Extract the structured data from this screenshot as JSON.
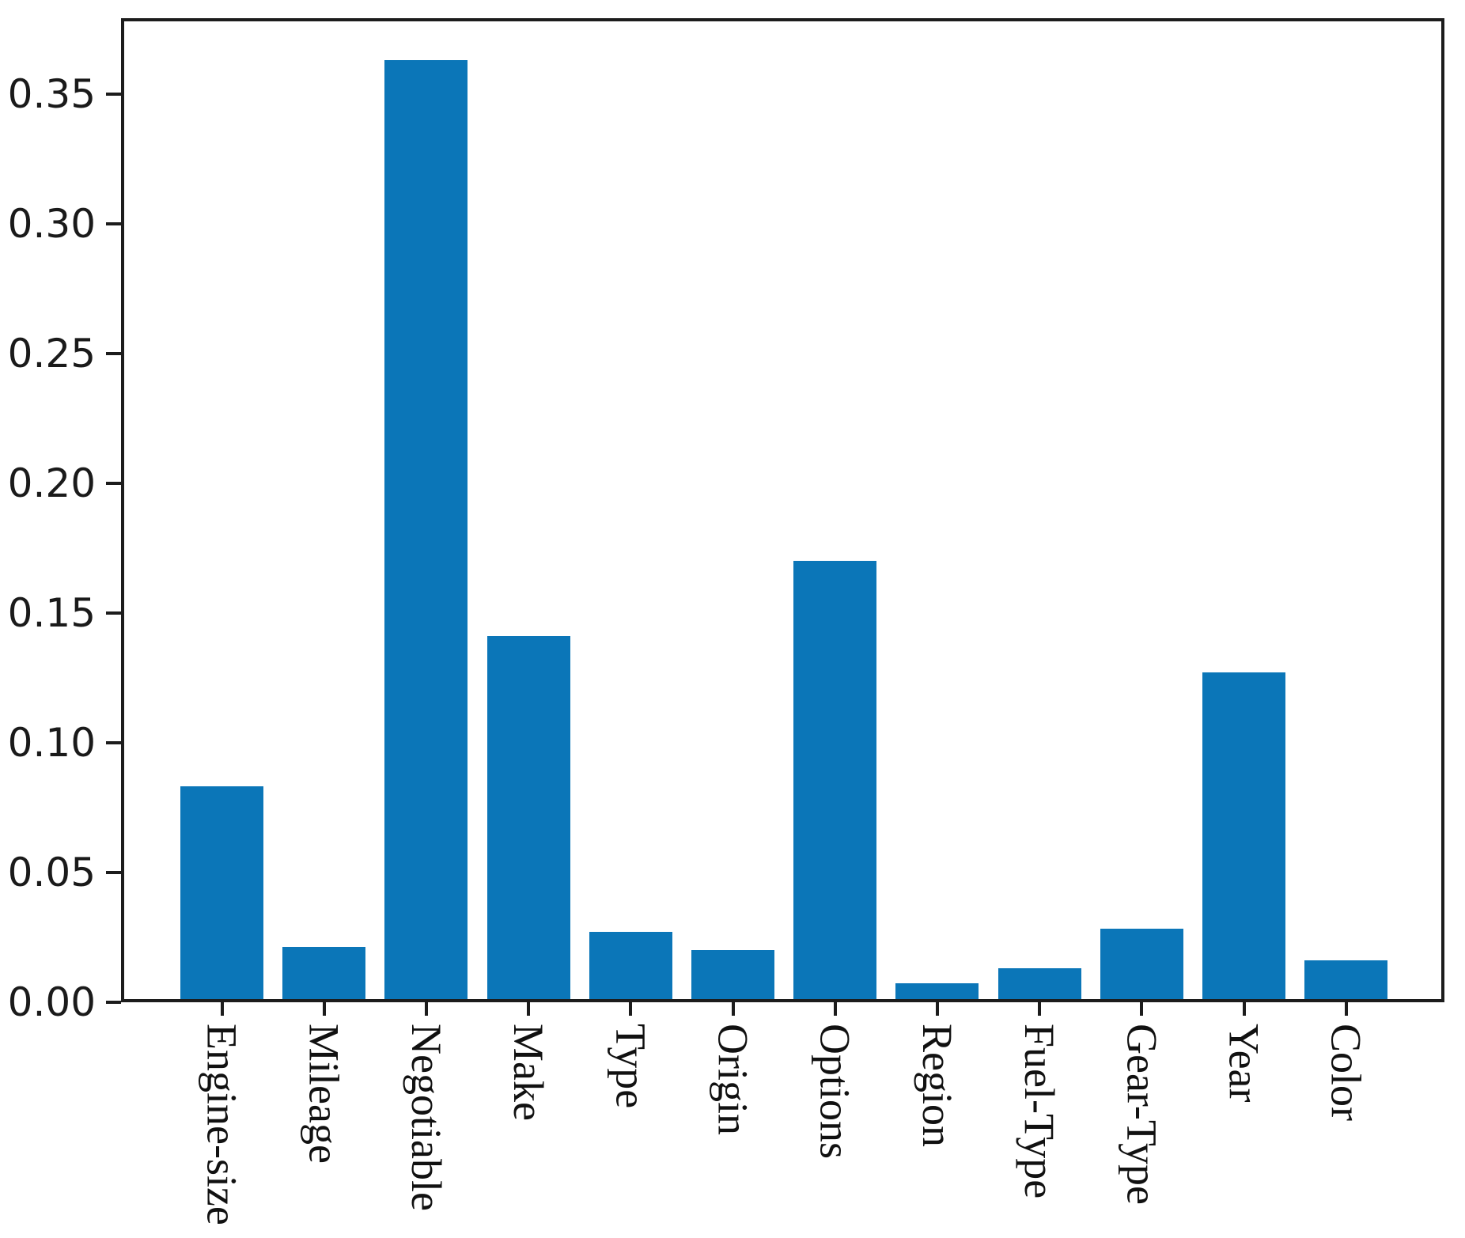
{
  "figure": {
    "title": "",
    "background": "#ffffff",
    "frame_color": "#1c1c1c",
    "text_color": "#1a1a1a"
  },
  "chart_data": {
    "type": "bar",
    "title": "",
    "xlabel": "",
    "ylabel": "",
    "categories": [
      "Engine-size",
      "Mileage",
      "Negotiable",
      "Make",
      "Type",
      "Origin",
      "Options",
      "Region",
      "Fuel-Type",
      "Gear-Type",
      "Year",
      "Color"
    ],
    "values": [
      0.082,
      0.02,
      0.362,
      0.14,
      0.026,
      0.019,
      0.169,
      0.006,
      0.012,
      0.027,
      0.126,
      0.015
    ],
    "bar_color": "#0b76b8",
    "ylim": [
      0,
      0.3793
    ],
    "yticks": [
      {
        "value": 0.0,
        "label": "0.00"
      },
      {
        "value": 0.05,
        "label": "0.05"
      },
      {
        "value": 0.1,
        "label": "0.10"
      },
      {
        "value": 0.15,
        "label": "0.15"
      },
      {
        "value": 0.2,
        "label": "0.20"
      },
      {
        "value": 0.25,
        "label": "0.25"
      },
      {
        "value": 0.3,
        "label": "0.30"
      },
      {
        "value": 0.35,
        "label": "0.35"
      }
    ],
    "grid": false,
    "legend": null,
    "xtick_rotation_degrees": 90
  }
}
